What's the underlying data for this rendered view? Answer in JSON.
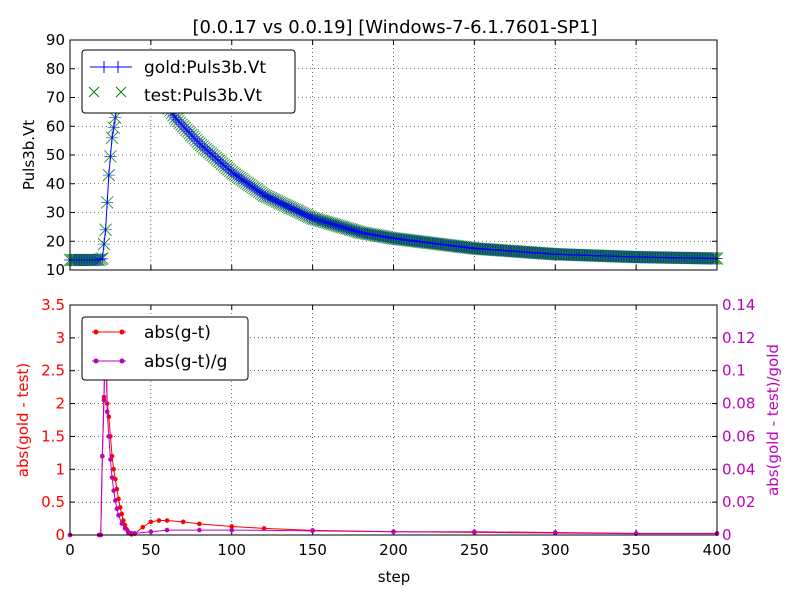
{
  "chart_data": {
    "title": "[0.0.17 vs 0.0.19] [Windows-7-6.1.7601-SP1]",
    "top": {
      "type": "line",
      "ylabel": "Puls3b.Vt",
      "xlim": [
        0,
        400
      ],
      "ylim": [
        10,
        90
      ],
      "yticks": [
        "10",
        "20",
        "30",
        "40",
        "50",
        "60",
        "70",
        "80",
        "90"
      ],
      "grid": true,
      "legend": "top-left",
      "series": [
        {
          "name": "gold:Puls3b.Vt",
          "color": "#0000ff",
          "marker": "plus"
        },
        {
          "name": "test:Puls3b.Vt",
          "color": "#008000",
          "marker": "x"
        }
      ],
      "waveform": {
        "baseline": 13.5,
        "rise_start": 18,
        "peak_step": 38,
        "peak": 82,
        "x": [
          0,
          18,
          20,
          22,
          24,
          26,
          28,
          30,
          33,
          36,
          38,
          45,
          55,
          65,
          80,
          100,
          120,
          150,
          180,
          200,
          250,
          300,
          350,
          400
        ],
        "y": [
          13.5,
          13.5,
          14,
          24,
          43,
          56,
          63,
          70,
          77,
          81,
          82,
          79,
          71,
          63,
          54,
          44,
          36,
          28,
          23,
          21,
          17.5,
          15.5,
          14.5,
          14
        ]
      }
    },
    "bottom": {
      "xlabel": "step",
      "xlim": [
        0,
        400
      ],
      "xticks": [
        "0",
        "50",
        "100",
        "150",
        "200",
        "250",
        "300",
        "350",
        "400"
      ],
      "left_axis": {
        "label": "abs(gold - test)",
        "ylim": [
          0,
          3.5
        ],
        "ticks": [
          "0",
          "0.5",
          "1",
          "1.5",
          "2",
          "2.5",
          "3",
          "3.5"
        ],
        "color": "#ff0000"
      },
      "right_axis": {
        "label": "abs(gold - test)/gold",
        "ylim": [
          0,
          0.14
        ],
        "ticks": [
          "0",
          "0.02",
          "0.04",
          "0.06",
          "0.08",
          "0.1",
          "0.12",
          "0.14"
        ],
        "color": "#bf00bf"
      },
      "grid": true,
      "legend": "top-left",
      "series": [
        {
          "name": "abs(g-t)",
          "axis": "left",
          "color": "#ff0000",
          "x": [
            0,
            18,
            19,
            20,
            21,
            22,
            23,
            24,
            25,
            26,
            27,
            28,
            29,
            30,
            31,
            32,
            33,
            34,
            35,
            36,
            38,
            40,
            45,
            50,
            55,
            60,
            70,
            80,
            100,
            120,
            150,
            200,
            250,
            300,
            350,
            400
          ],
          "y": [
            0,
            0,
            0,
            1.2,
            2.1,
            3.2,
            2.0,
            1.8,
            1.5,
            1.2,
            1.0,
            0.85,
            0.7,
            0.55,
            0.42,
            0.32,
            0.22,
            0.15,
            0.09,
            0.04,
            0.01,
            0.02,
            0.12,
            0.2,
            0.22,
            0.22,
            0.2,
            0.17,
            0.13,
            0.1,
            0.07,
            0.05,
            0.04,
            0.03,
            0.02,
            0.02
          ]
        },
        {
          "name": "abs(g-t)/g",
          "axis": "right",
          "color": "#bf00bf",
          "x": [
            0,
            18,
            19,
            20,
            21,
            22,
            23,
            24,
            25,
            26,
            27,
            28,
            29,
            30,
            32,
            34,
            36,
            38,
            40,
            50,
            60,
            80,
            100,
            150,
            200,
            250,
            300,
            350,
            400
          ],
          "y": [
            0,
            0,
            0,
            0.048,
            0.082,
            0.125,
            0.075,
            0.06,
            0.046,
            0.035,
            0.027,
            0.021,
            0.016,
            0.012,
            0.007,
            0.004,
            0.002,
            0.001,
            0.001,
            0.002,
            0.003,
            0.003,
            0.003,
            0.0025,
            0.002,
            0.002,
            0.0015,
            0.001,
            0.001
          ]
        }
      ]
    }
  }
}
